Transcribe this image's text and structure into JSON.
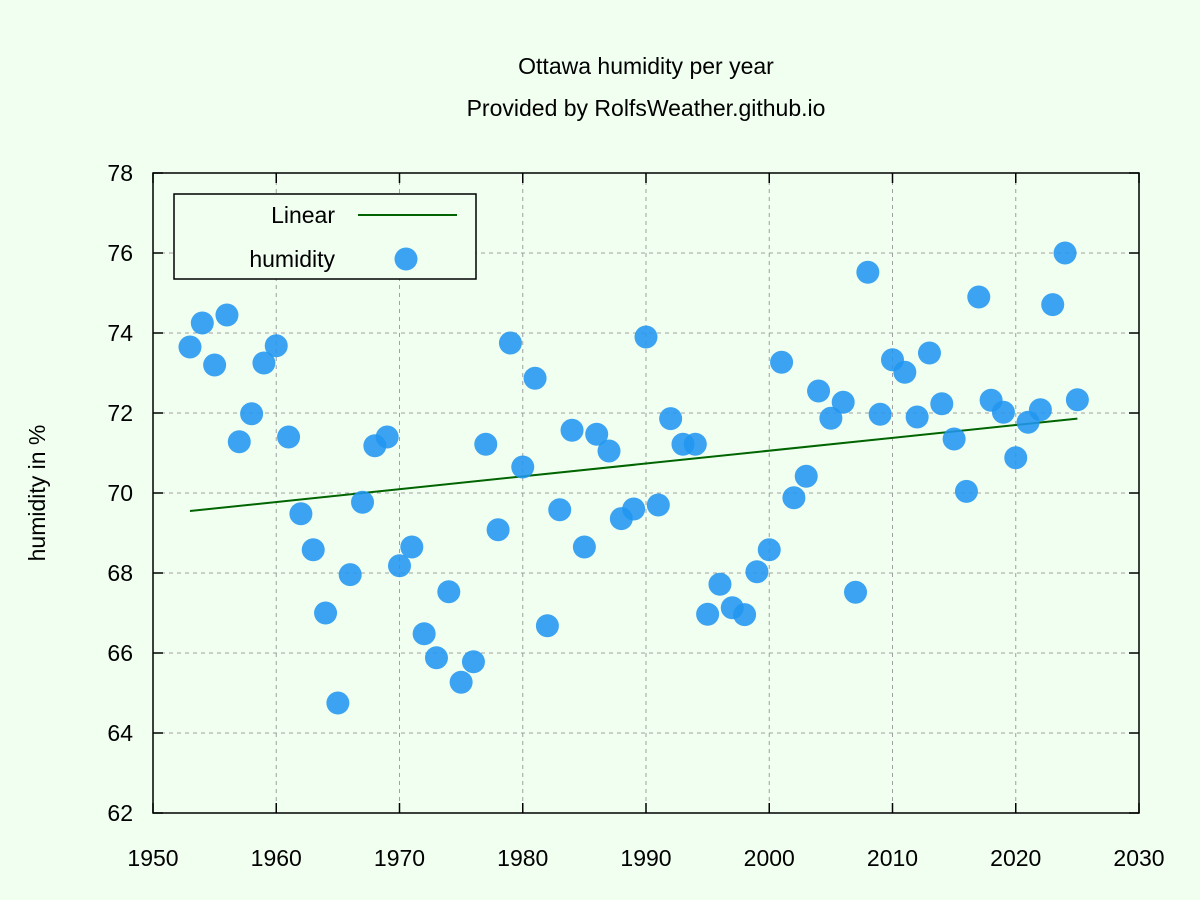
{
  "chart_data": {
    "type": "scatter",
    "title": "Ottawa humidity per year",
    "subtitle": "Provided by RolfsWeather.github.io",
    "xlabel": "",
    "ylabel": "humidity in %",
    "xlim": [
      1950,
      2030
    ],
    "ylim": [
      62,
      78
    ],
    "xticks": [
      1950,
      1960,
      1970,
      1980,
      1990,
      2000,
      2010,
      2020,
      2030
    ],
    "yticks": [
      62,
      64,
      66,
      68,
      70,
      72,
      74,
      76,
      78
    ],
    "grid": true,
    "legend_position": "top-left",
    "legend": [
      {
        "label": "Linear",
        "kind": "line"
      },
      {
        "label": "humidity",
        "kind": "point"
      }
    ],
    "colors": {
      "points": "#2196f0",
      "trend": "#006400",
      "background": "#f0fff0"
    },
    "series": [
      {
        "name": "humidity",
        "x": [
          1953,
          1954,
          1955,
          1956,
          1957,
          1958,
          1959,
          1960,
          1961,
          1962,
          1963,
          1964,
          1965,
          1966,
          1967,
          1968,
          1969,
          1970,
          1971,
          1972,
          1973,
          1974,
          1975,
          1976,
          1977,
          1978,
          1979,
          1980,
          1981,
          1982,
          1983,
          1984,
          1985,
          1986,
          1987,
          1988,
          1989,
          1990,
          1991,
          1992,
          1993,
          1994,
          1995,
          1996,
          1997,
          1998,
          1999,
          2000,
          2001,
          2002,
          2003,
          2004,
          2005,
          2006,
          2007,
          2008,
          2009,
          2010,
          2011,
          2012,
          2013,
          2014,
          2015,
          2016,
          2017,
          2018,
          2019,
          2020,
          2021,
          2022,
          2023,
          2024,
          2025
        ],
        "y": [
          73.65,
          74.25,
          73.2,
          74.45,
          71.28,
          71.98,
          73.25,
          73.68,
          71.4,
          69.48,
          68.58,
          67.0,
          64.75,
          67.96,
          69.77,
          71.18,
          71.4,
          68.18,
          68.65,
          66.48,
          65.88,
          67.53,
          65.27,
          65.78,
          71.22,
          69.08,
          73.75,
          70.65,
          72.87,
          66.68,
          69.58,
          71.57,
          68.65,
          71.47,
          71.05,
          69.36,
          69.6,
          73.9,
          69.7,
          71.86,
          71.22,
          71.22,
          66.97,
          67.72,
          67.13,
          66.96,
          68.03,
          68.58,
          73.27,
          69.88,
          70.42,
          72.55,
          71.87,
          72.27,
          67.52,
          75.52,
          71.97,
          73.33,
          73.02,
          71.9,
          73.5,
          72.23,
          71.35,
          70.04,
          74.9,
          72.32,
          72.02,
          70.88,
          71.77,
          72.08,
          74.71,
          76.0,
          72.33
        ]
      },
      {
        "name": "Linear",
        "x": [
          1953,
          2025
        ],
        "y": [
          69.55,
          71.86
        ]
      }
    ]
  }
}
